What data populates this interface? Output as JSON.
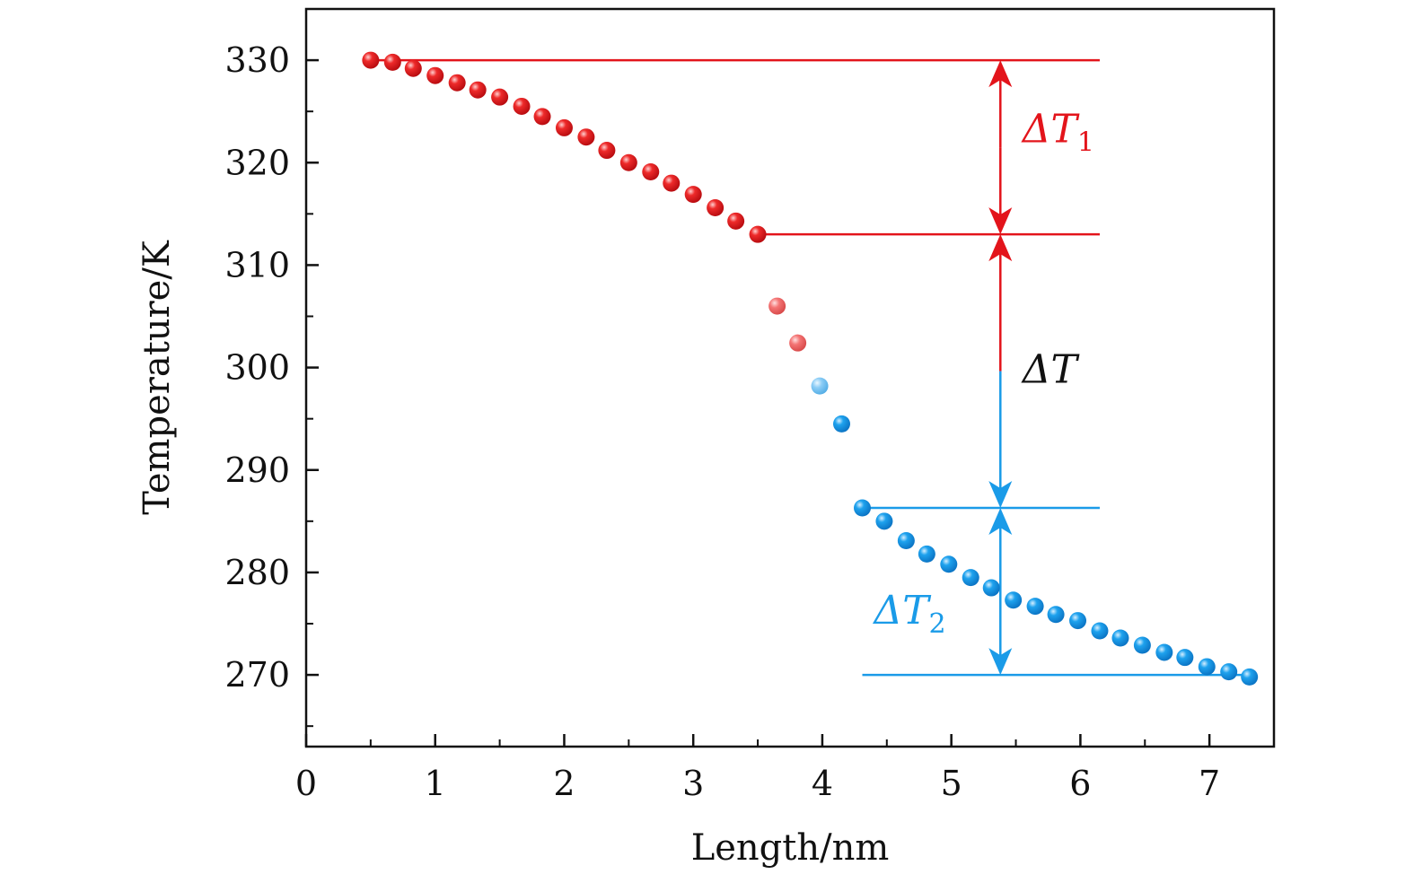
{
  "chart_data": {
    "type": "scatter",
    "title": "",
    "xlabel": "Length/nm",
    "ylabel": "Temperature/K",
    "xlim": [
      0,
      7.5
    ],
    "ylim": [
      263,
      335
    ],
    "xticks": [
      0,
      1,
      2,
      3,
      4,
      5,
      6,
      7
    ],
    "yticks": [
      270,
      280,
      290,
      300,
      310,
      320,
      330
    ],
    "grid": false,
    "legend": "none",
    "series": [
      {
        "name": "hot",
        "color": "#e3141b",
        "x": [
          0.5,
          0.67,
          0.83,
          1.0,
          1.17,
          1.33,
          1.5,
          1.67,
          1.83,
          2.0,
          2.17,
          2.33,
          2.5,
          2.67,
          2.83,
          3.0,
          3.17,
          3.33,
          3.5
        ],
        "y": [
          330.0,
          329.8,
          329.2,
          328.5,
          327.8,
          327.1,
          326.4,
          325.5,
          324.5,
          323.4,
          322.5,
          321.2,
          320.0,
          319.1,
          318.0,
          316.9,
          315.6,
          314.3,
          313.0
        ]
      },
      {
        "name": "hot-transition",
        "color": "#f07070",
        "x": [
          3.65,
          3.81
        ],
        "y": [
          306.0,
          302.4
        ]
      },
      {
        "name": "cold-transition",
        "color": "#7cc4f4",
        "x": [
          3.98
        ],
        "y": [
          298.2
        ]
      },
      {
        "name": "cold",
        "color": "#1a9be8",
        "x": [
          4.15,
          4.31,
          4.48,
          4.65,
          4.81,
          4.98,
          5.15,
          5.31,
          5.48,
          5.65,
          5.81,
          5.98,
          6.15,
          6.31,
          6.48,
          6.65,
          6.81,
          6.98,
          7.15,
          7.31
        ],
        "y": [
          294.5,
          286.3,
          285.0,
          283.1,
          281.8,
          280.8,
          279.5,
          278.5,
          277.3,
          276.7,
          275.9,
          275.3,
          274.3,
          273.6,
          272.9,
          272.2,
          271.7,
          270.8,
          270.3,
          269.8
        ]
      }
    ],
    "reference_lines": [
      {
        "y": 330.0,
        "x_from": 0.5,
        "x_to": 6.15,
        "color": "#e3141b"
      },
      {
        "y": 313.0,
        "x_from": 3.5,
        "x_to": 6.15,
        "color": "#e3141b"
      },
      {
        "y": 286.3,
        "x_from": 4.31,
        "x_to": 6.15,
        "color": "#1a9be8"
      },
      {
        "y": 270.0,
        "x_from": 4.31,
        "x_to": 7.31,
        "color": "#1a9be8"
      }
    ],
    "arrows": [
      {
        "x": 5.38,
        "y_from": 330.0,
        "y_to": 313.0,
        "color": "#e3141b",
        "both": true
      },
      {
        "x": 5.38,
        "y_from": 313.0,
        "y_to": 286.3,
        "color": "#e3141b",
        "color_end": "#1a9be8",
        "both": true
      },
      {
        "x": 5.38,
        "y_from": 286.3,
        "y_to": 270.0,
        "color": "#1a9be8",
        "both": true
      }
    ],
    "annotations": [
      {
        "label": "ΔT",
        "subscript": "1",
        "x": 5.55,
        "y": 322.0,
        "color": "#e3141b"
      },
      {
        "label": "ΔT",
        "subscript": "",
        "x": 5.55,
        "y": 298.5,
        "color": "#111111"
      },
      {
        "label": "ΔT",
        "subscript": "2",
        "x": 4.4,
        "y": 275.0,
        "color": "#1a9be8"
      }
    ]
  }
}
